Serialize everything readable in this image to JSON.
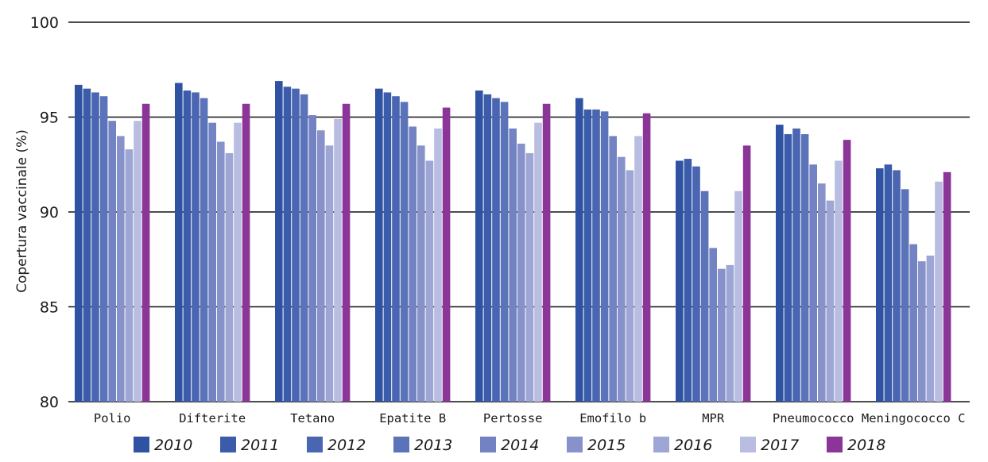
{
  "chart_data": {
    "type": "bar",
    "title": "",
    "xlabel": "",
    "ylabel": "Copertura vaccinale (%)",
    "ylim": [
      80,
      100
    ],
    "yticks": [
      "80",
      "85",
      "90",
      "95",
      "100"
    ],
    "grid": true,
    "legend_position": "bottom",
    "categories": [
      "Polio",
      "Difterite",
      "Tetano",
      "Epatite B",
      "Pertosse",
      "Emofilo b",
      "MPR",
      "Pneumococco",
      "Meningococco C"
    ],
    "series": [
      {
        "name": "2010",
        "color": "#2f52a3",
        "values": [
          96.7,
          96.8,
          96.9,
          96.5,
          96.4,
          96.0,
          92.7,
          94.6,
          92.3
        ]
      },
      {
        "name": "2011",
        "color": "#3b5bab",
        "values": [
          96.5,
          96.4,
          96.6,
          96.3,
          96.2,
          95.4,
          92.8,
          94.1,
          92.5
        ]
      },
      {
        "name": "2012",
        "color": "#4a66b2",
        "values": [
          96.3,
          96.3,
          96.5,
          96.1,
          96.0,
          95.4,
          92.4,
          94.4,
          92.2
        ]
      },
      {
        "name": "2013",
        "color": "#5b73b9",
        "values": [
          96.1,
          96.0,
          96.2,
          95.8,
          95.8,
          95.3,
          91.1,
          94.1,
          91.2
        ]
      },
      {
        "name": "2014",
        "color": "#7282c2",
        "values": [
          94.8,
          94.7,
          95.1,
          94.5,
          94.4,
          94.0,
          88.1,
          92.5,
          88.3
        ]
      },
      {
        "name": "2015",
        "color": "#8792cb",
        "values": [
          94.0,
          93.7,
          94.3,
          93.5,
          93.6,
          92.9,
          87.0,
          91.5,
          87.4
        ]
      },
      {
        "name": "2016",
        "color": "#9ea6d5",
        "values": [
          93.3,
          93.1,
          93.5,
          92.7,
          93.1,
          92.2,
          87.2,
          90.6,
          87.7
        ]
      },
      {
        "name": "2017",
        "color": "#b8bde1",
        "values": [
          94.8,
          94.7,
          94.9,
          94.4,
          94.7,
          94.0,
          91.1,
          92.7,
          91.6
        ]
      },
      {
        "name": "2018",
        "color": "#8a3597",
        "values": [
          95.7,
          95.7,
          95.7,
          95.5,
          95.7,
          95.2,
          93.5,
          93.8,
          92.1
        ]
      }
    ]
  }
}
